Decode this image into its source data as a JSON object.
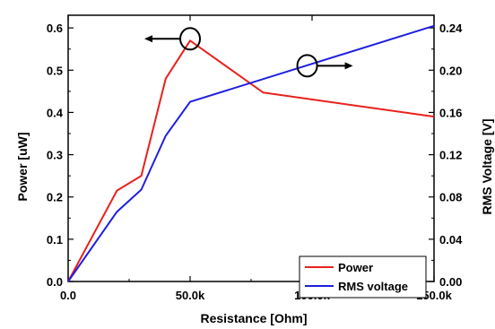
{
  "chart_data": {
    "type": "line",
    "xlabel": "Resistance [Ohm]",
    "ylabel_left": "Power [uW]",
    "ylabel_right": "RMS Voltage [V]",
    "xlim": [
      0,
      150000
    ],
    "ylim_left": [
      0.0,
      0.63
    ],
    "ylim_right": [
      0.0,
      0.252
    ],
    "x_ticks": [
      0,
      50000,
      100000,
      150000
    ],
    "x_tick_labels": [
      "0.0",
      "50.0k",
      "100.0k",
      "150.0k"
    ],
    "y_left_ticks": [
      0.0,
      0.1,
      0.2,
      0.3,
      0.4,
      0.5,
      0.6
    ],
    "y_left_tick_labels": [
      "0.0",
      "0.1",
      "0.2",
      "0.3",
      "0.4",
      "0.5",
      "0.6"
    ],
    "y_right_ticks": [
      0.0,
      0.04,
      0.08,
      0.12,
      0.16,
      0.2,
      0.24
    ],
    "y_right_tick_labels": [
      "0.00",
      "0.04",
      "0.08",
      "0.12",
      "0.16",
      "0.20",
      "0.24"
    ],
    "series": [
      {
        "name": "Power",
        "axis": "left",
        "color": "#e8211c",
        "x": [
          0,
          20000,
          30000,
          40000,
          50000,
          80000,
          150000
        ],
        "values": [
          0.0,
          0.215,
          0.25,
          0.48,
          0.57,
          0.447,
          0.39
        ]
      },
      {
        "name": "RMS voltage",
        "axis": "right",
        "color": "#1f1fe0",
        "x": [
          0,
          20000,
          30000,
          40000,
          50000,
          150000
        ],
        "values": [
          0.0,
          0.066,
          0.087,
          0.138,
          0.17,
          0.242
        ]
      }
    ],
    "annotations": [
      {
        "target": "Power",
        "at_x": 50000,
        "at_y": 0.57,
        "arrow_direction": "left",
        "note": "circle with arrow pointing to left axis"
      },
      {
        "target": "RMS voltage",
        "at_x": 98000,
        "at_y": 0.2025,
        "arrow_direction": "right",
        "note": "circle with arrow pointing to right axis"
      }
    ],
    "legend": {
      "position": "bottom-right"
    },
    "grid": false
  }
}
